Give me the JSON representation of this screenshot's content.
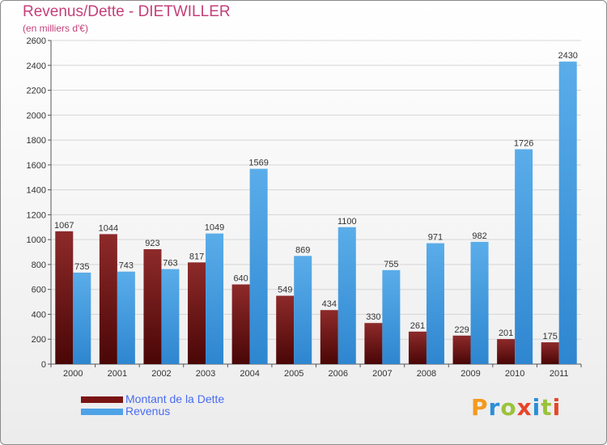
{
  "title": "Revenus/Dette - DIETWILLER",
  "subtitle": "(en milliers d'€)",
  "legend": [
    {
      "label": "Montant de la Dette",
      "color": "#7a1414"
    },
    {
      "label": "Revenus",
      "color": "#4ea3e6"
    }
  ],
  "logo": {
    "text": "Proxiti",
    "letters": [
      {
        "ch": "P",
        "color": "#f39a1e"
      },
      {
        "ch": "r",
        "color": "#2a8fd8"
      },
      {
        "ch": "o",
        "color": "#9bc23b"
      },
      {
        "ch": "x",
        "color": "#e8452a"
      },
      {
        "ch": "i",
        "color": "#2a8fd8"
      },
      {
        "ch": "t",
        "color": "#9bc23b"
      },
      {
        "ch": "i",
        "color": "#e8452a"
      }
    ]
  },
  "chart_data": {
    "type": "bar",
    "title": "Revenus/Dette - DIETWILLER",
    "subtitle": "(en milliers d'€)",
    "xlabel": "",
    "ylabel": "",
    "ylim": [
      0,
      2600
    ],
    "yticks": [
      0,
      200,
      400,
      600,
      800,
      1000,
      1200,
      1400,
      1600,
      1800,
      2000,
      2200,
      2400,
      2600
    ],
    "grid": true,
    "legend_position": "bottom-left",
    "categories": [
      "2000",
      "2001",
      "2002",
      "2003",
      "2004",
      "2005",
      "2006",
      "2007",
      "2008",
      "2009",
      "2010",
      "2011"
    ],
    "series": [
      {
        "name": "Montant de la Dette",
        "color": "#7a1414",
        "values": [
          1067,
          1044,
          923,
          817,
          640,
          549,
          434,
          330,
          261,
          229,
          201,
          175
        ]
      },
      {
        "name": "Revenus",
        "color": "#4ea3e6",
        "values": [
          735,
          743,
          763,
          1049,
          1569,
          869,
          1100,
          755,
          971,
          982,
          1726,
          2430
        ]
      }
    ]
  }
}
